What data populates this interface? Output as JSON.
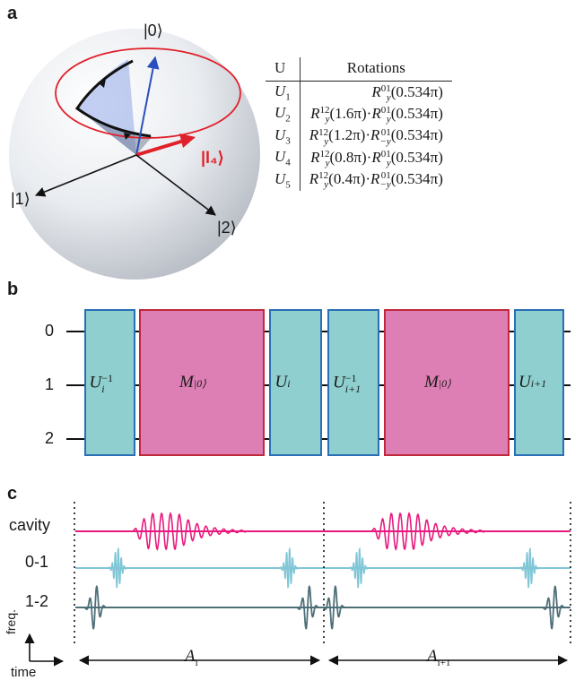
{
  "panels": {
    "a": "a",
    "b": "b",
    "c": "c"
  },
  "bloch": {
    "state_labels": {
      "s0": "|0⟩",
      "s1": "|1⟩",
      "s2": "|2⟩",
      "l4": "|l₄⟩"
    },
    "colors": {
      "circle": "#e0202a",
      "target": "#e0202a",
      "vector": "#2b4fbf",
      "wedge": "#8fa8e8"
    }
  },
  "table": {
    "header": {
      "u": "U",
      "rotations": "Rotations"
    },
    "rows": [
      {
        "u": "U",
        "u_sub": "1",
        "terms": [
          {
            "sup": "01",
            "sub": "y",
            "angle": "(0.534π)"
          }
        ]
      },
      {
        "u": "U",
        "u_sub": "2",
        "terms": [
          {
            "sup": "12",
            "sub": "y",
            "angle": "(1.6π)"
          },
          {
            "sup": "01",
            "sub": "y",
            "angle": "(0.534π)"
          }
        ]
      },
      {
        "u": "U",
        "u_sub": "3",
        "terms": [
          {
            "sup": "12",
            "sub": "y",
            "angle": "(1.2π)"
          },
          {
            "sup": "01",
            "sub": "−y",
            "angle": "(0.534π)"
          }
        ]
      },
      {
        "u": "U",
        "u_sub": "4",
        "terms": [
          {
            "sup": "12",
            "sub": "y",
            "angle": "(0.8π)"
          },
          {
            "sup": "01",
            "sub": "y",
            "angle": "(0.534π)"
          }
        ]
      },
      {
        "u": "U",
        "u_sub": "5",
        "terms": [
          {
            "sup": "12",
            "sub": "y",
            "angle": "(0.4π)"
          },
          {
            "sup": "01",
            "sub": "−y",
            "angle": "(0.534π)"
          }
        ]
      }
    ]
  },
  "circuit": {
    "wires": [
      "0",
      "1",
      "2"
    ],
    "gates": [
      {
        "type": "U",
        "base": "U",
        "sub": "i",
        "sup": "−1"
      },
      {
        "type": "M",
        "base": "M",
        "sub": "|0⟩",
        "sup": ""
      },
      {
        "type": "U",
        "base": "U",
        "sub": "i",
        "sup": ""
      },
      {
        "type": "U",
        "base": "U",
        "sub": "i+1",
        "sup": "−1"
      },
      {
        "type": "M",
        "base": "M",
        "sub": "|0⟩",
        "sup": ""
      },
      {
        "type": "U",
        "base": "U",
        "sub": "i+1",
        "sup": ""
      }
    ],
    "colors": {
      "u_fill": "#8fcfcf",
      "u_stroke": "#2a6fb5",
      "m_fill": "#dd7fb4",
      "m_stroke": "#c0283c"
    }
  },
  "pulses": {
    "traces": [
      "cavity",
      "0-1",
      "1-2"
    ],
    "colors": {
      "cavity": "#e8197e",
      "q01": "#80c6d6",
      "q12": "#4f6f78"
    },
    "axis": {
      "freq": "freq.",
      "time": "time"
    },
    "intervals": [
      {
        "base": "A",
        "sub": "i"
      },
      {
        "base": "A",
        "sub": "i+1"
      }
    ]
  }
}
